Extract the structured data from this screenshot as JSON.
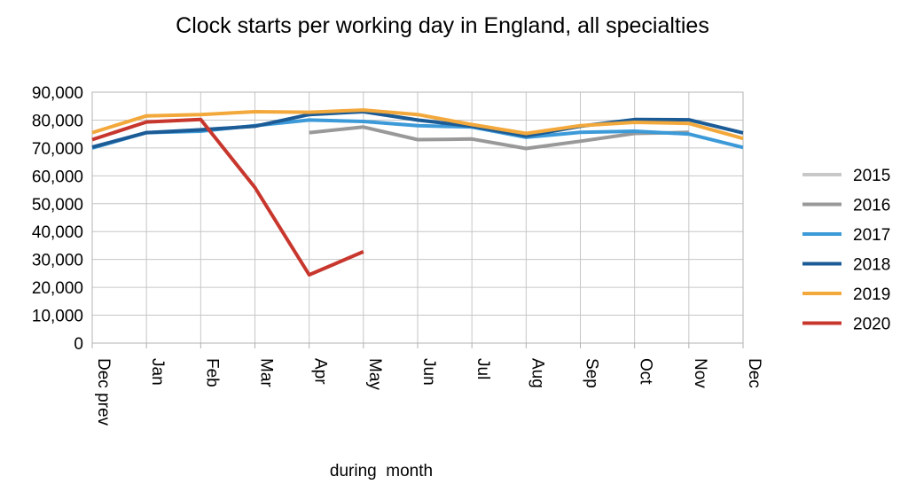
{
  "chart_data": {
    "type": "line",
    "title": "Clock starts per working day in England, all specialties",
    "xlabel": "during  month",
    "ylabel": "",
    "categories": [
      "Dec prev",
      "Jan",
      "Feb",
      "Mar",
      "Apr",
      "May",
      "Jun",
      "Jul",
      "Aug",
      "Sep",
      "Oct",
      "Nov",
      "Dec"
    ],
    "ylim": [
      0,
      90000
    ],
    "yticks": [
      0,
      10000,
      20000,
      30000,
      40000,
      50000,
      60000,
      70000,
      80000,
      90000
    ],
    "ytick_labels": [
      "0",
      "10,000",
      "20,000",
      "30,000",
      "40,000",
      "50,000",
      "60,000",
      "70,000",
      "80,000",
      "90,000"
    ],
    "grid": true,
    "legend_position": "right",
    "series": [
      {
        "name": "2015",
        "color": "#c8c8c8",
        "values": [
          null,
          null,
          null,
          null,
          null,
          null,
          null,
          null,
          null,
          null,
          null,
          null,
          null
        ]
      },
      {
        "name": "2016",
        "color": "#999999",
        "values": [
          null,
          null,
          null,
          null,
          75500,
          77500,
          73000,
          73200,
          69800,
          72400,
          75200,
          75600,
          null
        ]
      },
      {
        "name": "2017",
        "color": "#3d9ad8",
        "values": [
          70000,
          75500,
          76000,
          78000,
          80000,
          79500,
          78000,
          77500,
          73800,
          75600,
          76000,
          75000,
          70200
        ]
      },
      {
        "name": "2018",
        "color": "#1b5b96",
        "values": [
          70300,
          75500,
          76500,
          77800,
          82000,
          83000,
          80000,
          77800,
          74300,
          77800,
          80200,
          80100,
          75400
        ]
      },
      {
        "name": "2019",
        "color": "#f3a83b",
        "values": [
          75500,
          81500,
          82000,
          83000,
          82800,
          83600,
          82000,
          78400,
          75200,
          78000,
          79200,
          78800,
          73400
        ]
      },
      {
        "name": "2020",
        "color": "#c8372d",
        "values": [
          73000,
          79300,
          80200,
          55800,
          24500,
          32800,
          null,
          null,
          null,
          null,
          null,
          null,
          null
        ]
      }
    ]
  }
}
